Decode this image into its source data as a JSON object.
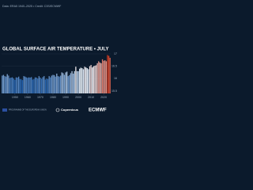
{
  "chart_data": {
    "type": "bar",
    "title": "GLOBAL SURFACE AIR TEMPERATURE • JULY",
    "subtitle": "Data: ERA5 1940–2025 • Credit: C3S/ECMWF",
    "x": [
      1940,
      1941,
      1942,
      1943,
      1944,
      1945,
      1946,
      1947,
      1948,
      1949,
      1950,
      1951,
      1952,
      1953,
      1954,
      1955,
      1956,
      1957,
      1958,
      1959,
      1960,
      1961,
      1962,
      1963,
      1964,
      1965,
      1966,
      1967,
      1968,
      1969,
      1970,
      1971,
      1972,
      1973,
      1974,
      1975,
      1976,
      1977,
      1978,
      1979,
      1980,
      1981,
      1982,
      1983,
      1984,
      1985,
      1986,
      1987,
      1988,
      1989,
      1990,
      1991,
      1992,
      1993,
      1994,
      1995,
      1996,
      1997,
      1998,
      1999,
      2000,
      2001,
      2002,
      2003,
      2004,
      2005,
      2006,
      2007,
      2008,
      2009,
      2010,
      2011,
      2012,
      2013,
      2014,
      2015,
      2016,
      2017,
      2018,
      2019,
      2020,
      2021,
      2022,
      2023,
      2024,
      2025
    ],
    "values": [
      16.12,
      16.15,
      16.1,
      16.08,
      16.18,
      16.12,
      16.02,
      16.04,
      16.05,
      16.0,
      15.95,
      16.05,
      16.04,
      16.08,
      15.98,
      15.97,
      15.94,
      16.1,
      16.08,
      16.05,
      16.03,
      16.05,
      16.04,
      16.06,
      15.96,
      15.98,
      16.05,
      16.04,
      16.0,
      16.1,
      16.04,
      15.99,
      16.06,
      16.1,
      15.96,
      16.0,
      15.98,
      16.1,
      16.05,
      16.12,
      16.15,
      16.14,
      16.08,
      16.2,
      16.1,
      16.08,
      16.12,
      16.25,
      16.22,
      16.15,
      16.25,
      16.28,
      16.1,
      16.14,
      16.22,
      16.3,
      16.2,
      16.3,
      16.48,
      16.3,
      16.3,
      16.4,
      16.44,
      16.42,
      16.38,
      16.48,
      16.45,
      16.42,
      16.38,
      16.5,
      16.55,
      16.45,
      16.5,
      16.52,
      16.54,
      16.62,
      16.7,
      16.65,
      16.62,
      16.78,
      16.72,
      16.74,
      16.7,
      16.95,
      16.92,
      16.84
    ],
    "colors": [
      "#1c5aa6",
      "#e8eef4",
      "#c8371f"
    ],
    "xlim": [
      1939.5,
      2025.5
    ],
    "xticks": [
      1950,
      1960,
      1970,
      1980,
      1990,
      2000,
      2010,
      2020
    ],
    "ylim": [
      15.4,
      17.0
    ],
    "yticks": [
      15.5,
      16,
      16.5,
      17
    ],
    "grid": true,
    "logos": [
      "PROGRAMME OF THE EUROPEAN UNION",
      "Copernicus",
      "ECMWF"
    ]
  }
}
